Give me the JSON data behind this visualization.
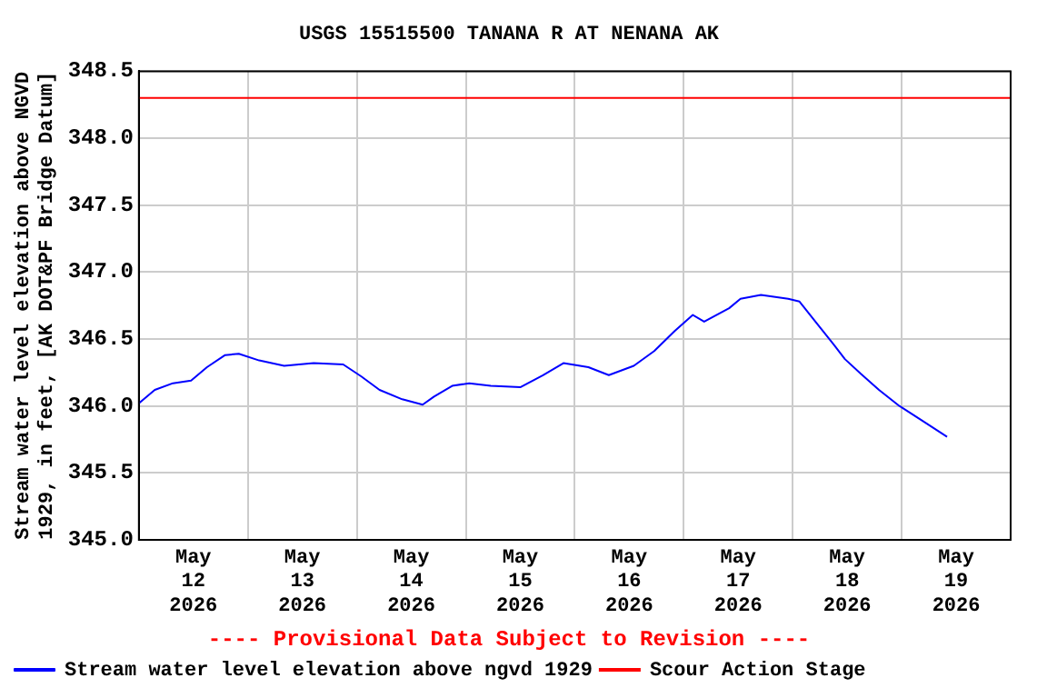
{
  "chart_data": {
    "type": "line",
    "title": "USGS 15515500 TANANA R AT NENANA AK",
    "ylabel": "Stream water level elevation above NGVD 1929, in feet, [AK DOT&PF Bridge Datum]",
    "x": [
      "2026-05-12T00:00",
      "2026-05-12T03:30",
      "2026-05-12T07:30",
      "2026-05-12T11:30",
      "2026-05-12T15:00",
      "2026-05-12T19:00",
      "2026-05-12T22:00",
      "2026-05-13T02:30",
      "2026-05-13T08:00",
      "2026-05-13T14:30",
      "2026-05-13T21:00",
      "2026-05-14T01:00",
      "2026-05-14T05:00",
      "2026-05-14T10:00",
      "2026-05-14T14:30",
      "2026-05-14T17:00",
      "2026-05-14T21:00",
      "2026-05-15T00:45",
      "2026-05-15T05:30",
      "2026-05-15T12:00",
      "2026-05-15T17:00",
      "2026-05-15T21:30",
      "2026-05-16T03:00",
      "2026-05-16T07:30",
      "2026-05-16T13:00",
      "2026-05-16T17:30",
      "2026-05-16T22:00",
      "2026-05-17T02:00",
      "2026-05-17T04:30",
      "2026-05-17T10:00",
      "2026-05-17T12:30",
      "2026-05-17T17:00",
      "2026-05-17T23:00",
      "2026-05-18T01:30",
      "2026-05-18T05:00",
      "2026-05-18T09:00",
      "2026-05-18T11:30",
      "2026-05-18T15:00",
      "2026-05-18T19:00",
      "2026-05-18T23:30",
      "2026-05-19T05:00",
      "2026-05-19T10:00"
    ],
    "series": [
      {
        "name": "Stream water level elevation above ngvd 1929",
        "color": "#0000ff",
        "values": [
          346.02,
          346.12,
          346.17,
          346.19,
          346.29,
          346.38,
          346.39,
          346.34,
          346.3,
          346.32,
          346.31,
          346.22,
          346.12,
          346.05,
          346.01,
          346.07,
          346.15,
          346.17,
          346.15,
          346.14,
          346.23,
          346.32,
          346.29,
          346.23,
          346.3,
          346.41,
          346.56,
          346.68,
          346.63,
          346.73,
          346.8,
          346.83,
          346.8,
          346.78,
          346.63,
          346.46,
          346.35,
          346.24,
          346.12,
          346.0,
          345.88,
          345.77
        ]
      }
    ],
    "ref_lines": [
      {
        "axis": "y",
        "value": 348.3,
        "label": "Scour Action Stage",
        "color": "#ff0000"
      }
    ],
    "annotations": [
      "---- Provisional Data Subject to Revision ----"
    ],
    "xlim": [
      "2026-05-12T00:00",
      "2026-05-20T00:00"
    ],
    "xticks": [
      {
        "value": "2026-05-12T00:00",
        "label": null
      },
      {
        "value": "2026-05-12T12:00",
        "label": "May 12 2026"
      },
      {
        "value": "2026-05-13T00:00",
        "label": null
      },
      {
        "value": "2026-05-13T12:00",
        "label": "May 13 2026"
      },
      {
        "value": "2026-05-14T00:00",
        "label": null
      },
      {
        "value": "2026-05-14T12:00",
        "label": "May 14 2026"
      },
      {
        "value": "2026-05-15T00:00",
        "label": null
      },
      {
        "value": "2026-05-15T12:00",
        "label": "May 15 2026"
      },
      {
        "value": "2026-05-16T00:00",
        "label": null
      },
      {
        "value": "2026-05-16T12:00",
        "label": "May 16 2026"
      },
      {
        "value": "2026-05-17T00:00",
        "label": null
      },
      {
        "value": "2026-05-17T12:00",
        "label": "May 17 2026"
      },
      {
        "value": "2026-05-18T00:00",
        "label": null
      },
      {
        "value": "2026-05-18T12:00",
        "label": "May 18 2026"
      },
      {
        "value": "2026-05-19T00:00",
        "label": null
      },
      {
        "value": "2026-05-19T12:00",
        "label": "May 19 2026"
      },
      {
        "value": "2026-05-20T00:00",
        "label": null
      }
    ],
    "ylim": [
      345.0,
      348.5
    ],
    "yticks": [
      {
        "value": 345.0,
        "label": "345.0"
      },
      {
        "value": 345.5,
        "label": "345.5"
      },
      {
        "value": 346.0,
        "label": "346.0"
      },
      {
        "value": 346.5,
        "label": "346.5"
      },
      {
        "value": 347.0,
        "label": "347.0"
      },
      {
        "value": 347.5,
        "label": "347.5"
      },
      {
        "value": 348.0,
        "label": "348.0"
      },
      {
        "value": 348.5,
        "label": "348.5"
      }
    ],
    "grid": true,
    "legend": "bottom",
    "marker": "none",
    "line_style": "solid"
  }
}
